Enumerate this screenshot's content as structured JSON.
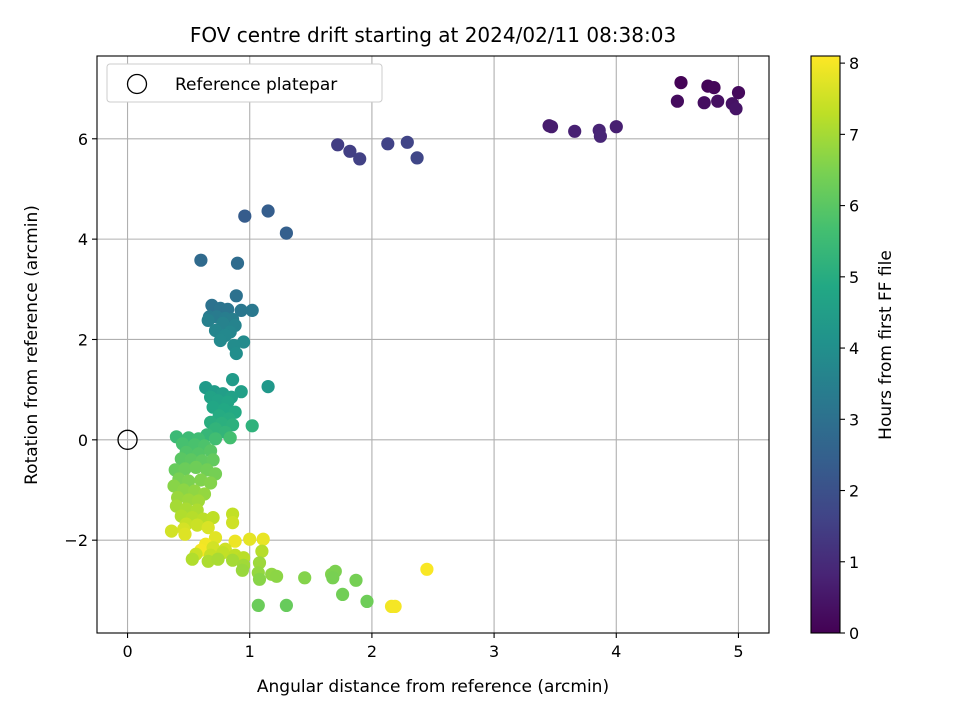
{
  "chart_data": {
    "type": "scatter",
    "title": "FOV centre drift starting at 2024/02/11 08:38:03",
    "xlabel": "Angular distance from reference (arcmin)",
    "ylabel": "Rotation from reference (arcmin)",
    "xlim": [
      -0.25,
      5.25
    ],
    "ylim": [
      -3.85,
      7.65
    ],
    "xticks": [
      0,
      1,
      2,
      3,
      4,
      5
    ],
    "yticks": [
      -2,
      0,
      2,
      4,
      6
    ],
    "xtick_labels": [
      "0",
      "1",
      "2",
      "3",
      "4",
      "5"
    ],
    "ytick_labels": [
      "−2",
      "0",
      "2",
      "4",
      "6"
    ],
    "grid": true,
    "legend": {
      "position": "top-left",
      "entries": [
        "Reference platepar"
      ]
    },
    "reference_point": {
      "x": 0,
      "y": 0,
      "label": "Reference platepar"
    },
    "colorbar": {
      "label": "Hours from first FF file",
      "range": [
        0,
        8.1
      ],
      "ticks": [
        0,
        1,
        2,
        3,
        4,
        5,
        6,
        7,
        8
      ],
      "tick_labels": [
        "0",
        "1",
        "2",
        "3",
        "4",
        "5",
        "6",
        "7",
        "8"
      ],
      "colormap": "viridis"
    },
    "points": [
      [
        4.53,
        7.12,
        0.05
      ],
      [
        4.75,
        7.05,
        0.1
      ],
      [
        4.8,
        7.02,
        0.15
      ],
      [
        5.0,
        6.92,
        0.2
      ],
      [
        4.5,
        6.75,
        0.25
      ],
      [
        4.72,
        6.72,
        0.3
      ],
      [
        4.83,
        6.75,
        0.35
      ],
      [
        4.95,
        6.7,
        0.4
      ],
      [
        4.98,
        6.6,
        0.45
      ],
      [
        3.45,
        6.26,
        0.6
      ],
      [
        3.47,
        6.24,
        0.65
      ],
      [
        4.0,
        6.24,
        0.7
      ],
      [
        3.66,
        6.15,
        0.75
      ],
      [
        3.86,
        6.17,
        0.8
      ],
      [
        3.87,
        6.05,
        0.85
      ],
      [
        1.72,
        5.88,
        1.45
      ],
      [
        1.82,
        5.75,
        1.5
      ],
      [
        1.9,
        5.6,
        1.55
      ],
      [
        2.13,
        5.9,
        1.6
      ],
      [
        2.29,
        5.93,
        1.65
      ],
      [
        2.37,
        5.62,
        1.7
      ],
      [
        0.96,
        4.46,
        2.35
      ],
      [
        1.15,
        4.56,
        2.4
      ],
      [
        1.3,
        4.12,
        2.45
      ],
      [
        0.6,
        3.58,
        2.8
      ],
      [
        0.9,
        3.52,
        2.85
      ],
      [
        0.89,
        2.87,
        3.0
      ],
      [
        0.69,
        2.68,
        3.05
      ],
      [
        0.76,
        2.62,
        3.1
      ],
      [
        0.82,
        2.6,
        3.15
      ],
      [
        0.93,
        2.58,
        3.2
      ],
      [
        1.02,
        2.58,
        3.25
      ],
      [
        0.67,
        2.45,
        3.3
      ],
      [
        0.73,
        2.45,
        3.35
      ],
      [
        0.8,
        2.42,
        3.4
      ],
      [
        0.86,
        2.4,
        3.45
      ],
      [
        0.66,
        2.38,
        3.5
      ],
      [
        0.78,
        2.32,
        3.55
      ],
      [
        0.88,
        2.28,
        3.6
      ],
      [
        0.72,
        2.18,
        3.65
      ],
      [
        0.84,
        2.15,
        3.7
      ],
      [
        0.8,
        2.08,
        3.75
      ],
      [
        0.76,
        1.98,
        3.8
      ],
      [
        0.95,
        1.95,
        3.85
      ],
      [
        0.87,
        1.88,
        3.9
      ],
      [
        0.89,
        1.72,
        3.95
      ],
      [
        1.15,
        1.06,
        4.3
      ],
      [
        0.64,
        1.04,
        4.35
      ],
      [
        0.86,
        1.2,
        4.4
      ],
      [
        0.71,
        0.96,
        4.45
      ],
      [
        0.78,
        0.92,
        4.5
      ],
      [
        0.93,
        0.96,
        4.55
      ],
      [
        0.85,
        0.85,
        4.6
      ],
      [
        0.68,
        0.85,
        4.65
      ],
      [
        0.74,
        0.78,
        4.7
      ],
      [
        0.82,
        0.75,
        4.75
      ],
      [
        0.7,
        0.65,
        4.8
      ],
      [
        0.79,
        0.6,
        4.85
      ],
      [
        0.88,
        0.55,
        4.9
      ],
      [
        0.75,
        0.48,
        4.95
      ],
      [
        0.83,
        0.42,
        5.0
      ],
      [
        0.68,
        0.35,
        5.05
      ],
      [
        0.77,
        0.33,
        5.1
      ],
      [
        0.86,
        0.3,
        5.15
      ],
      [
        1.02,
        0.28,
        5.2
      ],
      [
        0.72,
        0.22,
        5.25
      ],
      [
        0.8,
        0.15,
        5.3
      ],
      [
        0.65,
        0.1,
        5.35
      ],
      [
        0.4,
        0.06,
        5.45
      ],
      [
        0.5,
        0.04,
        5.5
      ],
      [
        0.58,
        0.02,
        5.55
      ],
      [
        0.72,
        0.02,
        5.6
      ],
      [
        0.84,
        0.04,
        5.65
      ],
      [
        0.45,
        -0.08,
        5.7
      ],
      [
        0.55,
        -0.1,
        5.75
      ],
      [
        0.63,
        -0.12,
        5.8
      ],
      [
        0.48,
        -0.25,
        5.85
      ],
      [
        0.58,
        -0.28,
        5.9
      ],
      [
        0.68,
        -0.22,
        5.95
      ],
      [
        0.44,
        -0.38,
        6.0
      ],
      [
        0.52,
        -0.4,
        6.05
      ],
      [
        0.61,
        -0.42,
        6.1
      ],
      [
        0.7,
        -0.4,
        6.15
      ],
      [
        0.39,
        -0.6,
        6.2
      ],
      [
        0.47,
        -0.58,
        6.25
      ],
      [
        0.56,
        -0.55,
        6.3
      ],
      [
        0.65,
        -0.6,
        6.35
      ],
      [
        0.72,
        -0.68,
        6.4
      ],
      [
        0.42,
        -0.78,
        6.45
      ],
      [
        0.5,
        -0.82,
        6.5
      ],
      [
        0.6,
        -0.8,
        6.55
      ],
      [
        0.68,
        -0.86,
        6.6
      ],
      [
        0.38,
        -0.92,
        6.65
      ],
      [
        0.46,
        -1.0,
        6.7
      ],
      [
        0.55,
        -1.02,
        6.75
      ],
      [
        0.63,
        -1.08,
        6.8
      ],
      [
        0.41,
        -1.15,
        6.85
      ],
      [
        0.5,
        -1.2,
        6.9
      ],
      [
        0.58,
        -1.22,
        6.95
      ],
      [
        0.4,
        -1.32,
        7.0
      ],
      [
        0.48,
        -1.38,
        7.05
      ],
      [
        0.57,
        -1.4,
        7.1
      ],
      [
        0.44,
        -1.52,
        7.15
      ],
      [
        0.53,
        -1.55,
        7.2
      ],
      [
        0.62,
        -1.58,
        7.25
      ],
      [
        0.7,
        -1.55,
        7.3
      ],
      [
        0.86,
        -1.48,
        7.35
      ],
      [
        0.48,
        -1.68,
        7.4
      ],
      [
        0.57,
        -1.7,
        7.45
      ],
      [
        0.86,
        -1.65,
        7.5
      ],
      [
        0.36,
        -1.82,
        7.55
      ],
      [
        0.46,
        -1.78,
        7.6
      ],
      [
        0.66,
        -1.75,
        7.65
      ],
      [
        0.47,
        -1.88,
        7.7
      ],
      [
        0.72,
        -1.95,
        7.75
      ],
      [
        1.0,
        -1.98,
        7.8
      ],
      [
        1.11,
        -1.98,
        7.85
      ],
      [
        0.88,
        -2.02,
        7.9
      ],
      [
        0.64,
        -2.08,
        7.95
      ],
      [
        0.6,
        -2.2,
        8.0
      ],
      [
        0.7,
        -2.15,
        7.55
      ],
      [
        0.8,
        -2.18,
        7.5
      ],
      [
        0.56,
        -2.28,
        7.45
      ],
      [
        0.68,
        -2.3,
        7.4
      ],
      [
        0.78,
        -2.25,
        7.35
      ],
      [
        0.88,
        -2.3,
        7.3
      ],
      [
        0.95,
        -2.35,
        7.25
      ],
      [
        1.1,
        -2.22,
        7.2
      ],
      [
        0.53,
        -2.38,
        7.15
      ],
      [
        0.66,
        -2.42,
        7.1
      ],
      [
        0.74,
        -2.38,
        7.05
      ],
      [
        0.86,
        -2.4,
        7.0
      ],
      [
        0.95,
        -2.5,
        6.95
      ],
      [
        1.08,
        -2.45,
        6.9
      ],
      [
        0.94,
        -2.6,
        6.85
      ],
      [
        1.07,
        -2.65,
        6.8
      ],
      [
        1.18,
        -2.68,
        6.75
      ],
      [
        1.22,
        -2.72,
        6.7
      ],
      [
        1.08,
        -2.78,
        6.65
      ],
      [
        1.45,
        -2.75,
        6.6
      ],
      [
        1.67,
        -2.68,
        6.55
      ],
      [
        1.7,
        -2.62,
        6.5
      ],
      [
        1.68,
        -2.75,
        6.45
      ],
      [
        1.87,
        -2.8,
        6.4
      ],
      [
        1.76,
        -3.08,
        6.35
      ],
      [
        1.96,
        -3.22,
        6.3
      ],
      [
        1.07,
        -3.3,
        6.25
      ],
      [
        1.3,
        -3.3,
        6.2
      ],
      [
        2.16,
        -3.32,
        7.95
      ],
      [
        2.19,
        -3.32,
        8.0
      ],
      [
        2.45,
        -2.58,
        8.05
      ]
    ]
  }
}
